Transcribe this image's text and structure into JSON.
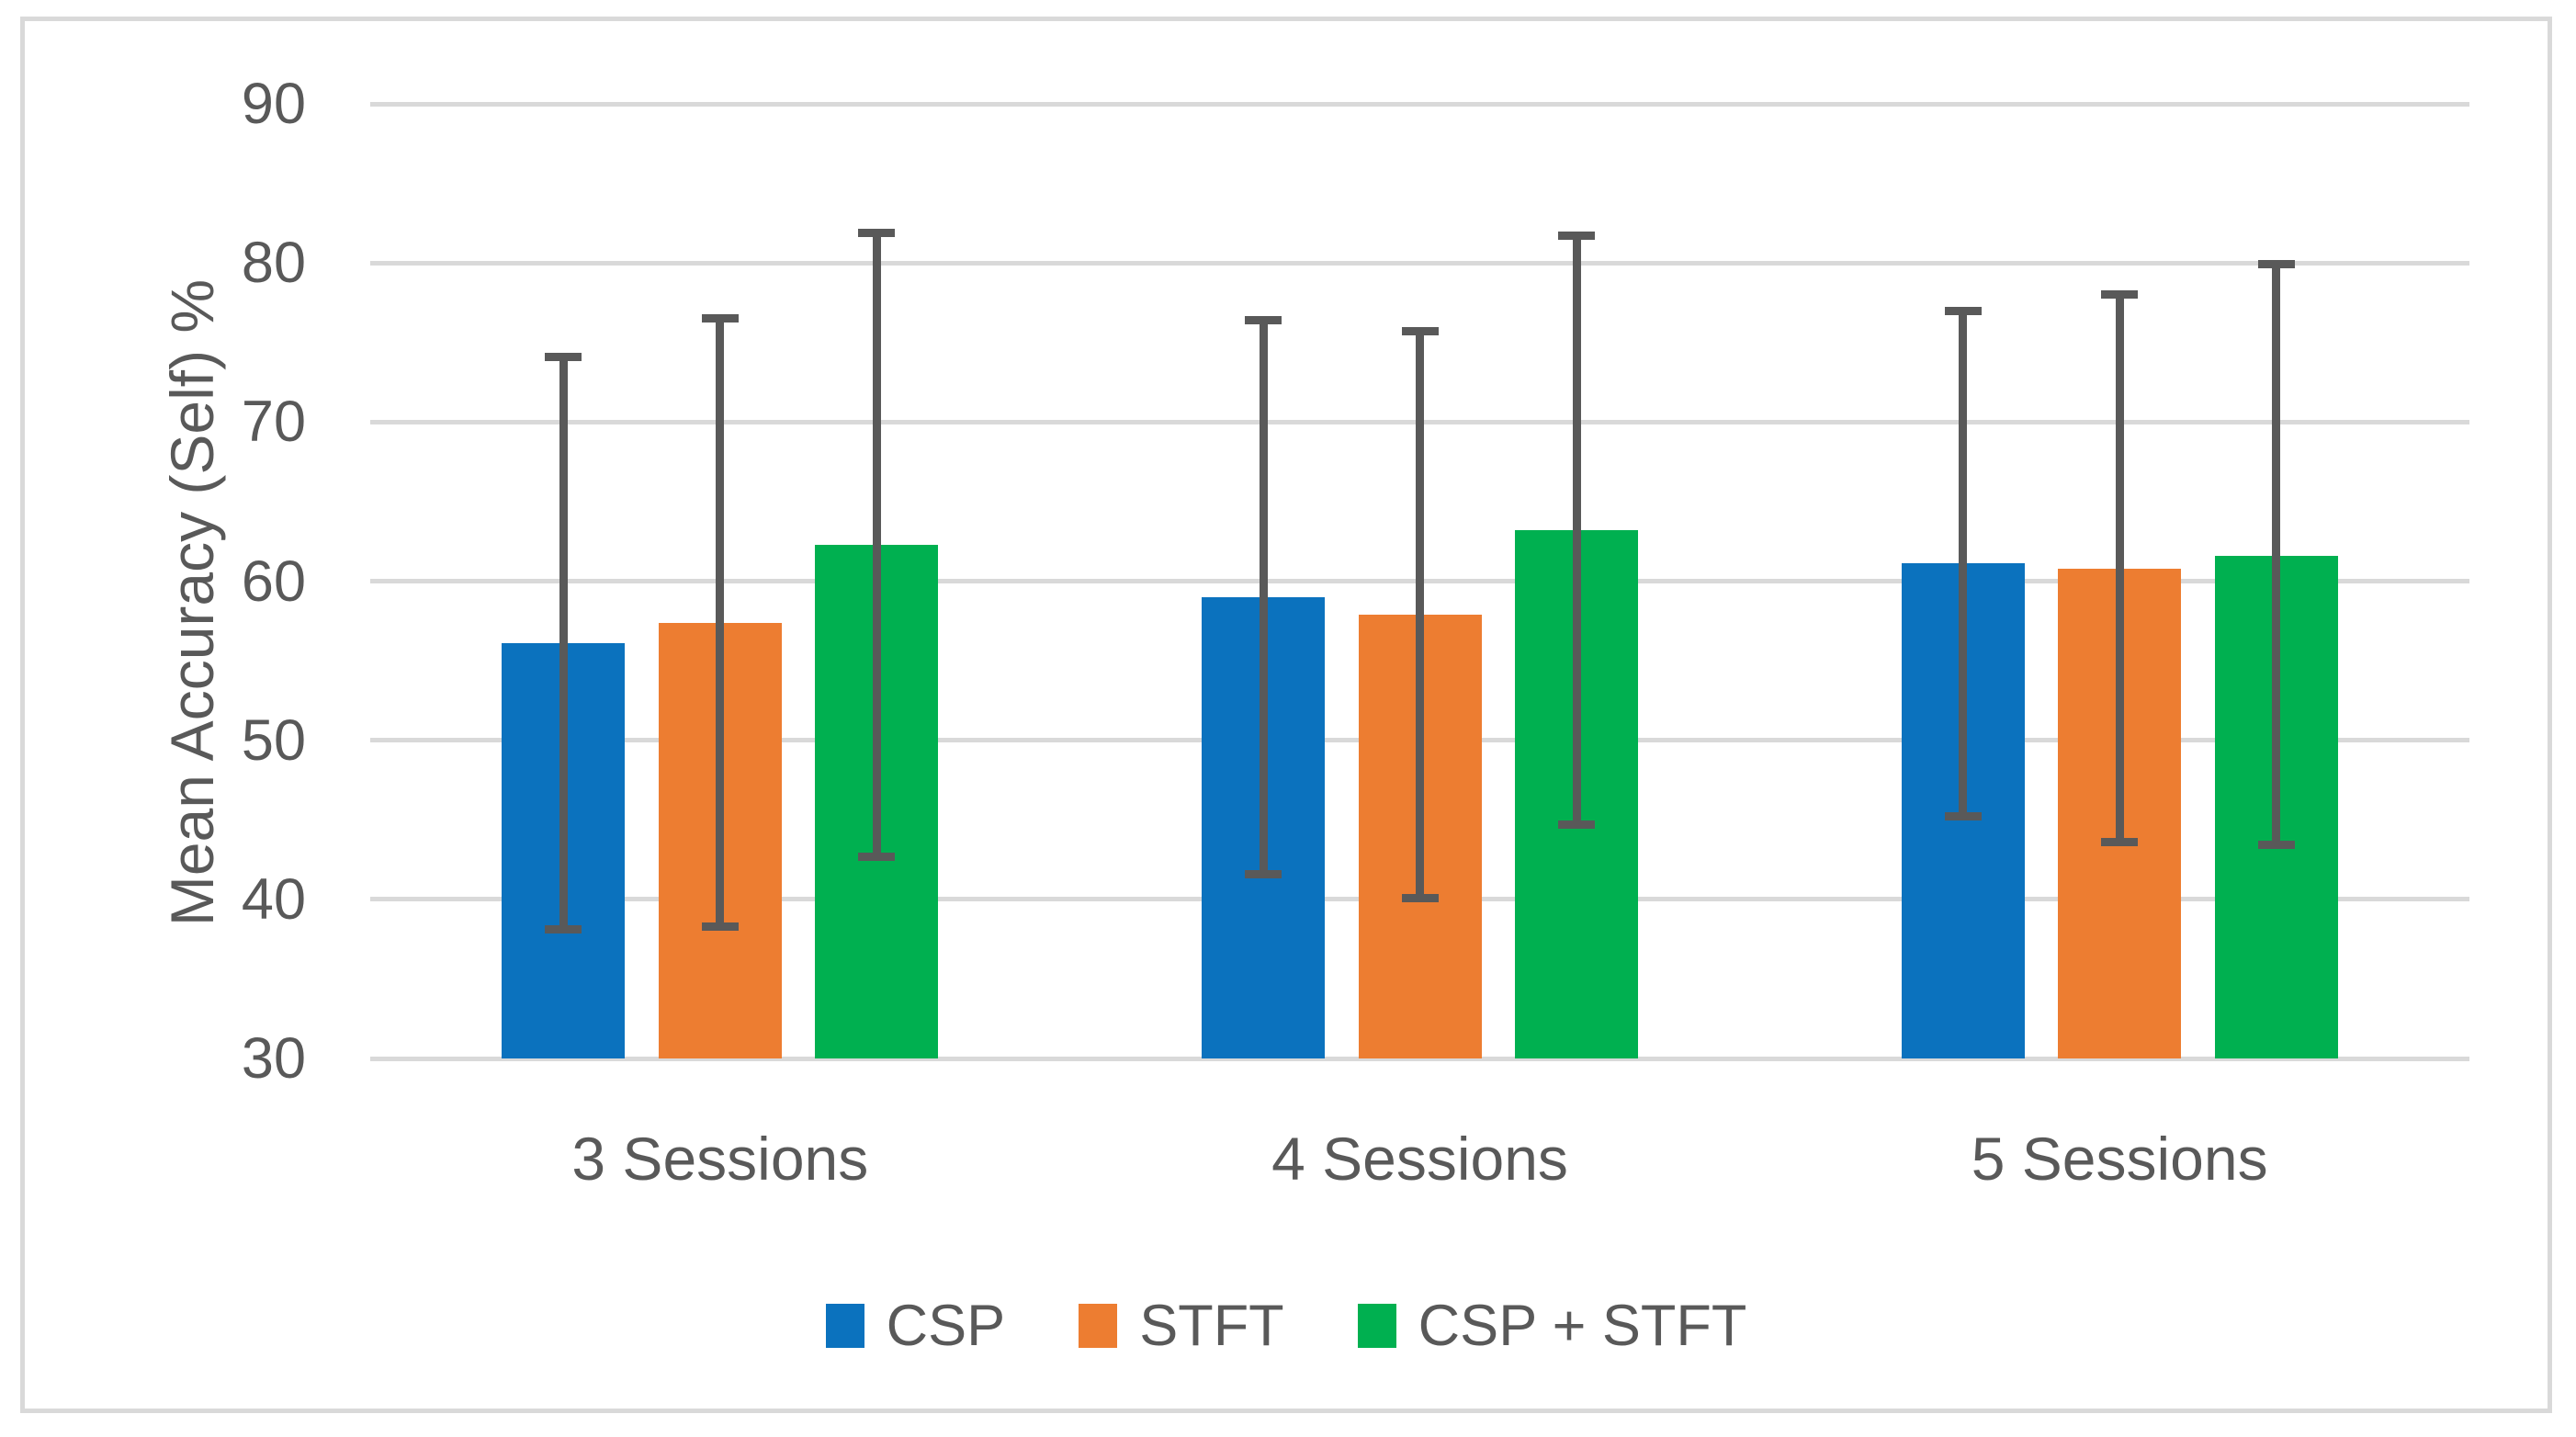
{
  "chart_data": {
    "type": "bar",
    "title": "",
    "ylabel": "Mean Accuracy (Self) %",
    "xlabel": "",
    "categories": [
      "3 Sessions",
      "4 Sessions",
      "5 Sessions"
    ],
    "series": [
      {
        "name": "CSP",
        "color": "#0b72be",
        "values": [
          56.1,
          59.0,
          61.1
        ],
        "error_high": [
          74.1,
          76.4,
          77.0
        ],
        "error_low": [
          38.1,
          41.6,
          45.2
        ]
      },
      {
        "name": "STFT",
        "color": "#ed7d31",
        "values": [
          57.4,
          57.9,
          60.8
        ],
        "error_high": [
          76.5,
          75.7,
          78.0
        ],
        "error_low": [
          38.3,
          40.1,
          43.6
        ]
      },
      {
        "name": "CSP + STFT",
        "color": "#00b050",
        "values": [
          62.3,
          63.2,
          61.6
        ],
        "error_high": [
          81.9,
          81.7,
          79.9
        ],
        "error_low": [
          42.7,
          44.7,
          43.4
        ]
      }
    ],
    "y_axis": {
      "min": 30,
      "max": 90,
      "step": 10,
      "ticks": [
        90,
        80,
        70,
        60,
        50,
        40,
        30
      ]
    },
    "grid": true,
    "legend_position": "bottom",
    "colors": {
      "text": "#595959",
      "gridline": "#d9d9d9",
      "error_bar": "#595959",
      "frame_border": "#d9d9d9",
      "background": "#ffffff"
    }
  }
}
